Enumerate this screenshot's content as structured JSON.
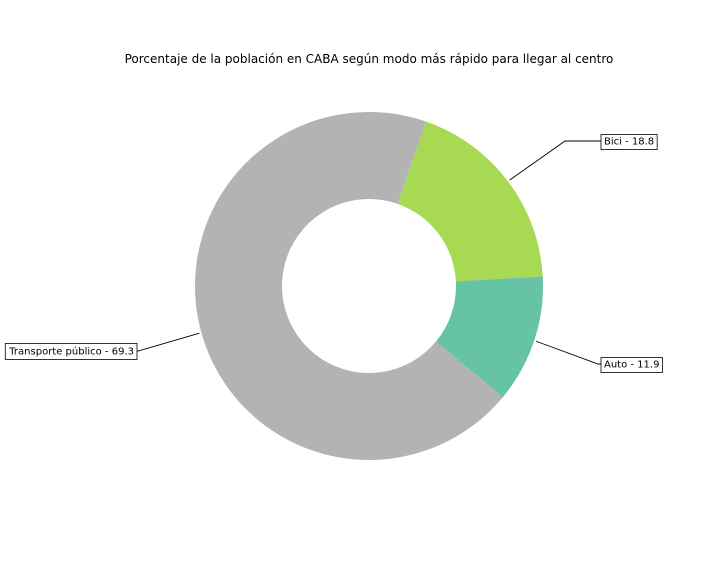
{
  "chart_data": {
    "type": "pie",
    "donut": true,
    "title": "Porcentaje de la población en CABA según modo más rápido para llegar al centro",
    "slices": [
      {
        "label": "Bici",
        "value": 18.8,
        "display": "Bici - 18.8",
        "color": "#a8d952"
      },
      {
        "label": "Auto",
        "value": 11.9,
        "display": "Auto - 11.9",
        "color": "#66c4a5"
      },
      {
        "label": "Transporte público",
        "value": 69.3,
        "display": "Transporte público - 69.3",
        "color": "#b3b3b3"
      }
    ],
    "start_angle_deg": 70.8,
    "direction": "clockwise",
    "legend": "none"
  }
}
